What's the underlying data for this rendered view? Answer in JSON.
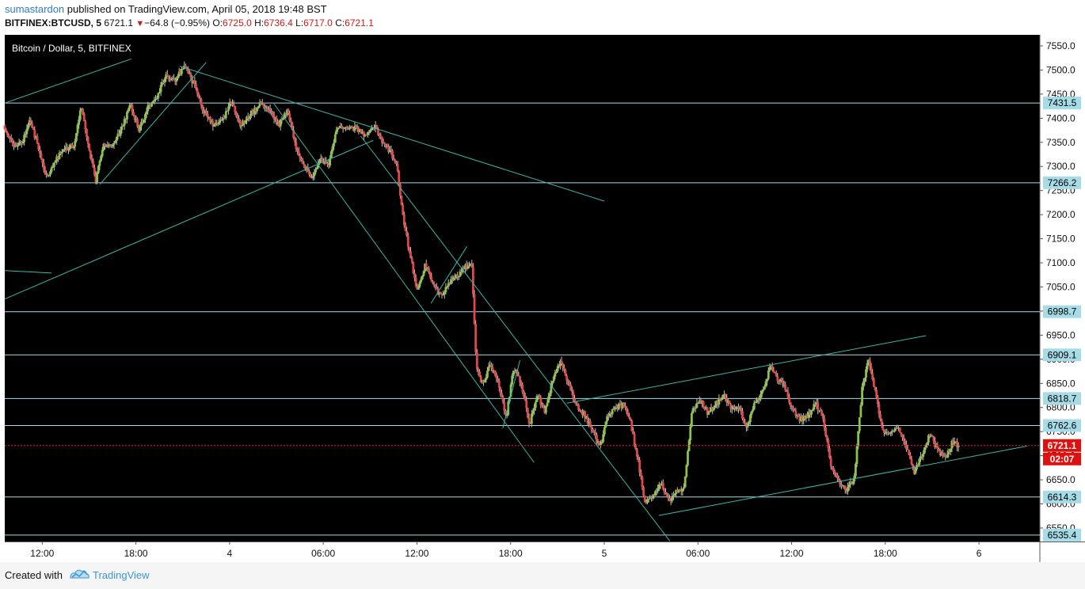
{
  "header": {
    "author": "sumastardon",
    "published_text": " published on TradingView.com, April 05, 2018 19:48 BST",
    "symbol": "BITFINEX:BTCUSD, 5",
    "last": "6721.1",
    "change": "−64.8 (−0.95%)",
    "o_label": "O:",
    "o_value": "6725.0",
    "h_label": "H:",
    "h_value": "6736.4",
    "l_label": "L:",
    "l_value": "6717.0",
    "c_label": "C:",
    "c_value": "6721.1"
  },
  "chart_data": {
    "type": "candlestick",
    "title": "Bitcoin / Dollar, 5, BITFINEX",
    "ylim": [
      6522,
      7573
    ],
    "y_ticks": [
      7550,
      7500,
      7450,
      7400,
      7350,
      7300,
      7250,
      7200,
      7150,
      7100,
      7050,
      7000,
      6950,
      6900,
      6850,
      6800,
      6750,
      6700,
      6650,
      6600,
      6550
    ],
    "y_tick_labels": [
      "7550.0",
      "7500.0",
      "7450.0",
      "7400.0",
      "7350.0",
      "7300.0",
      "7250.0",
      "7200.0",
      "7150.0",
      "7100.0",
      "7050.0",
      "7000.0",
      "6950.0",
      "6900.0",
      "6850.0",
      "6800.0",
      "6750.0",
      "6700.0",
      "6650.0",
      "6600.0",
      "6550.0"
    ],
    "x_tick_labels": [
      "12:00",
      "18:00",
      "4",
      "06:00",
      "12:00",
      "18:00",
      "5",
      "06:00",
      "12:00",
      "18:00",
      "6"
    ],
    "x_tick_times_h": [
      12,
      18,
      24,
      30,
      36,
      42,
      48,
      54,
      60,
      66,
      72
    ],
    "time_range_h": [
      9.6,
      75.9
    ],
    "levels": [
      {
        "value": 7431.5,
        "label": "7431.5"
      },
      {
        "value": 7266.2,
        "label": "7266.2"
      },
      {
        "value": 6998.7,
        "label": "6998.7"
      },
      {
        "value": 6909.1,
        "label": "6909.1"
      },
      {
        "value": 6818.7,
        "label": "6818.7"
      },
      {
        "value": 6762.6,
        "label": "6762.6"
      },
      {
        "value": 6614.3,
        "label": "6614.3"
      },
      {
        "value": 6535.4,
        "label": "6535.4"
      }
    ],
    "last_price": {
      "value": 6721.1,
      "label": "6721.1",
      "countdown": "02:07"
    },
    "trendlines": [
      {
        "t1": 9.6,
        "p1": 7431.5,
        "t2": 17.7,
        "p2": 7523
      },
      {
        "t1": 15.7,
        "p1": 7263,
        "t2": 22.5,
        "p2": 7516
      },
      {
        "t1": 20.8,
        "p1": 7508,
        "t2": 48.0,
        "p2": 7228
      },
      {
        "t1": 9.6,
        "p1": 7025,
        "t2": 33.2,
        "p2": 7354
      },
      {
        "t1": 9.6,
        "p1": 7084,
        "t2": 12.6,
        "p2": 7079
      },
      {
        "t1": 26.8,
        "p1": 7432,
        "t2": 43.5,
        "p2": 6686
      },
      {
        "t1": 32.4,
        "p1": 7363,
        "t2": 52.2,
        "p2": 6523
      },
      {
        "t1": 36.9,
        "p1": 7016,
        "t2": 39.2,
        "p2": 7134
      },
      {
        "t1": 41.5,
        "p1": 6757,
        "t2": 42.6,
        "p2": 6898
      },
      {
        "t1": 45.6,
        "p1": 6809,
        "t2": 68.6,
        "p2": 6949
      },
      {
        "t1": 51.5,
        "p1": 6576,
        "t2": 75.1,
        "p2": 6720
      }
    ],
    "price_path": [
      [
        9.6,
        7385
      ],
      [
        10.2,
        7345
      ],
      [
        10.8,
        7350
      ],
      [
        11.3,
        7395
      ],
      [
        11.9,
        7335
      ],
      [
        12.3,
        7275
      ],
      [
        12.9,
        7310
      ],
      [
        13.4,
        7335
      ],
      [
        14.1,
        7345
      ],
      [
        14.6,
        7425
      ],
      [
        15.1,
        7330
      ],
      [
        15.5,
        7270
      ],
      [
        16.0,
        7345
      ],
      [
        16.6,
        7345
      ],
      [
        17.2,
        7380
      ],
      [
        17.7,
        7430
      ],
      [
        18.3,
        7375
      ],
      [
        18.8,
        7420
      ],
      [
        19.4,
        7440
      ],
      [
        20.0,
        7490
      ],
      [
        20.6,
        7480
      ],
      [
        21.2,
        7510
      ],
      [
        21.8,
        7470
      ],
      [
        22.4,
        7415
      ],
      [
        23.0,
        7385
      ],
      [
        23.6,
        7395
      ],
      [
        24.2,
        7435
      ],
      [
        24.8,
        7385
      ],
      [
        25.4,
        7405
      ],
      [
        26.0,
        7430
      ],
      [
        26.6,
        7420
      ],
      [
        27.2,
        7385
      ],
      [
        27.8,
        7415
      ],
      [
        28.3,
        7345
      ],
      [
        28.8,
        7305
      ],
      [
        29.4,
        7275
      ],
      [
        29.9,
        7315
      ],
      [
        30.4,
        7300
      ],
      [
        31.0,
        7385
      ],
      [
        31.6,
        7375
      ],
      [
        32.2,
        7380
      ],
      [
        32.8,
        7360
      ],
      [
        33.4,
        7385
      ],
      [
        33.9,
        7345
      ],
      [
        34.3,
        7335
      ],
      [
        34.8,
        7305
      ],
      [
        35.2,
        7190
      ],
      [
        35.6,
        7125
      ],
      [
        36.1,
        7040
      ],
      [
        36.6,
        7095
      ],
      [
        37.1,
        7060
      ],
      [
        37.6,
        7030
      ],
      [
        38.1,
        7060
      ],
      [
        38.6,
        7070
      ],
      [
        39.1,
        7090
      ],
      [
        39.6,
        7095
      ],
      [
        39.9,
        6880
      ],
      [
        40.3,
        6850
      ],
      [
        40.8,
        6890
      ],
      [
        41.3,
        6855
      ],
      [
        41.8,
        6780
      ],
      [
        42.3,
        6885
      ],
      [
        42.8,
        6845
      ],
      [
        43.3,
        6765
      ],
      [
        43.8,
        6825
      ],
      [
        44.3,
        6790
      ],
      [
        44.8,
        6865
      ],
      [
        45.3,
        6895
      ],
      [
        45.8,
        6850
      ],
      [
        46.3,
        6805
      ],
      [
        46.8,
        6785
      ],
      [
        47.3,
        6755
      ],
      [
        47.8,
        6715
      ],
      [
        48.3,
        6785
      ],
      [
        48.8,
        6800
      ],
      [
        49.3,
        6805
      ],
      [
        49.8,
        6765
      ],
      [
        50.3,
        6680
      ],
      [
        50.7,
        6600
      ],
      [
        51.2,
        6620
      ],
      [
        51.7,
        6645
      ],
      [
        52.2,
        6605
      ],
      [
        52.7,
        6625
      ],
      [
        53.2,
        6635
      ],
      [
        53.7,
        6795
      ],
      [
        54.2,
        6815
      ],
      [
        54.7,
        6790
      ],
      [
        55.2,
        6805
      ],
      [
        55.7,
        6825
      ],
      [
        56.2,
        6800
      ],
      [
        56.7,
        6800
      ],
      [
        57.2,
        6760
      ],
      [
        57.7,
        6810
      ],
      [
        58.2,
        6830
      ],
      [
        58.7,
        6885
      ],
      [
        59.2,
        6860
      ],
      [
        59.6,
        6845
      ],
      [
        60.1,
        6800
      ],
      [
        60.6,
        6775
      ],
      [
        61.1,
        6780
      ],
      [
        61.6,
        6810
      ],
      [
        62.1,
        6780
      ],
      [
        62.6,
        6680
      ],
      [
        63.1,
        6650
      ],
      [
        63.6,
        6625
      ],
      [
        64.1,
        6655
      ],
      [
        64.6,
        6840
      ],
      [
        65.0,
        6905
      ],
      [
        65.4,
        6840
      ],
      [
        65.9,
        6755
      ],
      [
        66.4,
        6745
      ],
      [
        66.9,
        6760
      ],
      [
        67.4,
        6720
      ],
      [
        67.9,
        6665
      ],
      [
        68.4,
        6700
      ],
      [
        68.9,
        6745
      ],
      [
        69.4,
        6715
      ],
      [
        69.9,
        6690
      ],
      [
        70.4,
        6730
      ],
      [
        70.7,
        6721.1
      ]
    ]
  },
  "footer": {
    "created_with": "Created with",
    "brand": "TradingView"
  }
}
